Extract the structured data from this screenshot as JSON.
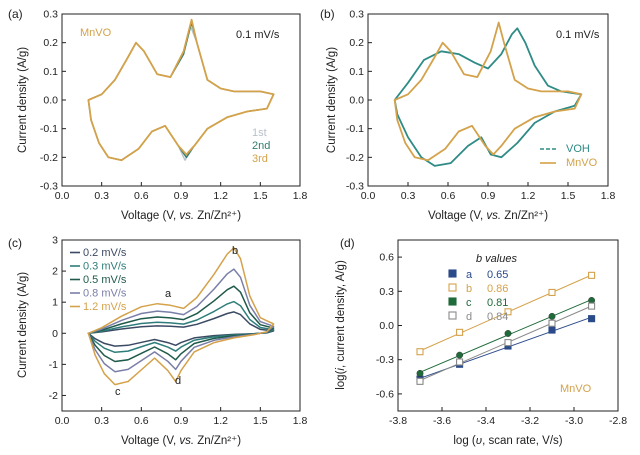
{
  "chart_data": [
    {
      "panel": "(a)",
      "type": "line",
      "xlabel": "Voltage (V, vs. Zn/Zn²⁺)",
      "ylabel": "Current density (A/g)",
      "xlim": [
        0.0,
        1.8
      ],
      "ylim": [
        -0.3,
        0.3
      ],
      "xticks": [
        "0.0",
        "0.3",
        "0.6",
        "0.9",
        "1.2",
        "1.5",
        "1.8"
      ],
      "yticks": [
        "-0.3",
        "-0.2",
        "-0.1",
        "0.0",
        "0.1",
        "0.2",
        "0.3"
      ],
      "material_label": "MnVO",
      "rate_label": "0.1 mV/s",
      "series": [
        {
          "name": "1st",
          "color": "#b8c0c8",
          "points": [
            [
              0.2,
              0.0
            ],
            [
              0.3,
              0.02
            ],
            [
              0.4,
              0.07
            ],
            [
              0.5,
              0.15
            ],
            [
              0.56,
              0.2
            ],
            [
              0.62,
              0.17
            ],
            [
              0.72,
              0.09
            ],
            [
              0.82,
              0.08
            ],
            [
              0.92,
              0.16
            ],
            [
              0.97,
              0.26
            ],
            [
              1.02,
              0.2
            ],
            [
              1.1,
              0.07
            ],
            [
              1.2,
              0.04
            ],
            [
              1.3,
              0.03
            ],
            [
              1.4,
              0.03
            ],
            [
              1.5,
              0.03
            ],
            [
              1.6,
              0.02
            ],
            [
              1.55,
              -0.03
            ],
            [
              1.4,
              -0.04
            ],
            [
              1.25,
              -0.06
            ],
            [
              1.1,
              -0.1
            ],
            [
              1.0,
              -0.16
            ],
            [
              0.93,
              -0.21
            ],
            [
              0.88,
              -0.16
            ],
            [
              0.78,
              -0.09
            ],
            [
              0.68,
              -0.11
            ],
            [
              0.58,
              -0.17
            ],
            [
              0.45,
              -0.21
            ],
            [
              0.35,
              -0.2
            ],
            [
              0.28,
              -0.15
            ],
            [
              0.22,
              -0.07
            ],
            [
              0.2,
              0.0
            ]
          ]
        },
        {
          "name": "2nd",
          "color": "#2e7d6e",
          "points": [
            [
              0.2,
              0.0
            ],
            [
              0.3,
              0.02
            ],
            [
              0.4,
              0.07
            ],
            [
              0.5,
              0.15
            ],
            [
              0.56,
              0.2
            ],
            [
              0.62,
              0.17
            ],
            [
              0.72,
              0.09
            ],
            [
              0.82,
              0.08
            ],
            [
              0.92,
              0.16
            ],
            [
              0.98,
              0.27
            ],
            [
              1.02,
              0.2
            ],
            [
              1.1,
              0.07
            ],
            [
              1.2,
              0.04
            ],
            [
              1.3,
              0.03
            ],
            [
              1.4,
              0.03
            ],
            [
              1.5,
              0.03
            ],
            [
              1.6,
              0.02
            ],
            [
              1.55,
              -0.03
            ],
            [
              1.4,
              -0.04
            ],
            [
              1.25,
              -0.06
            ],
            [
              1.1,
              -0.1
            ],
            [
              1.0,
              -0.16
            ],
            [
              0.94,
              -0.2
            ],
            [
              0.88,
              -0.16
            ],
            [
              0.78,
              -0.09
            ],
            [
              0.68,
              -0.11
            ],
            [
              0.58,
              -0.17
            ],
            [
              0.45,
              -0.21
            ],
            [
              0.35,
              -0.2
            ],
            [
              0.28,
              -0.15
            ],
            [
              0.22,
              -0.07
            ],
            [
              0.2,
              0.0
            ]
          ]
        },
        {
          "name": "3rd",
          "color": "#d4a24a",
          "points": [
            [
              0.2,
              0.0
            ],
            [
              0.3,
              0.02
            ],
            [
              0.4,
              0.07
            ],
            [
              0.5,
              0.15
            ],
            [
              0.56,
              0.2
            ],
            [
              0.62,
              0.17
            ],
            [
              0.72,
              0.09
            ],
            [
              0.82,
              0.08
            ],
            [
              0.92,
              0.17
            ],
            [
              0.98,
              0.28
            ],
            [
              1.02,
              0.2
            ],
            [
              1.1,
              0.07
            ],
            [
              1.2,
              0.04
            ],
            [
              1.3,
              0.03
            ],
            [
              1.4,
              0.03
            ],
            [
              1.5,
              0.03
            ],
            [
              1.6,
              0.02
            ],
            [
              1.55,
              -0.03
            ],
            [
              1.4,
              -0.04
            ],
            [
              1.25,
              -0.06
            ],
            [
              1.1,
              -0.1
            ],
            [
              1.0,
              -0.16
            ],
            [
              0.94,
              -0.19
            ],
            [
              0.88,
              -0.16
            ],
            [
              0.78,
              -0.09
            ],
            [
              0.68,
              -0.11
            ],
            [
              0.58,
              -0.17
            ],
            [
              0.45,
              -0.21
            ],
            [
              0.35,
              -0.2
            ],
            [
              0.28,
              -0.15
            ],
            [
              0.22,
              -0.07
            ],
            [
              0.2,
              0.0
            ]
          ]
        }
      ]
    },
    {
      "panel": "(b)",
      "type": "line",
      "xlabel": "Voltage (V, vs. Zn/Zn²⁺)",
      "ylabel": "Current density (A/g)",
      "xlim": [
        0.0,
        1.8
      ],
      "ylim": [
        -0.3,
        0.3
      ],
      "xticks": [
        "0.0",
        "0.3",
        "0.6",
        "0.9",
        "1.2",
        "1.5",
        "1.8"
      ],
      "yticks": [
        "-0.3",
        "-0.2",
        "-0.1",
        "0.0",
        "0.1",
        "0.2",
        "0.3"
      ],
      "rate_label": "0.1 mV/s",
      "series": [
        {
          "name": "VOH",
          "color": "#2e8b85",
          "points": [
            [
              0.2,
              0.0
            ],
            [
              0.3,
              0.06
            ],
            [
              0.42,
              0.14
            ],
            [
              0.55,
              0.17
            ],
            [
              0.68,
              0.16
            ],
            [
              0.8,
              0.13
            ],
            [
              0.9,
              0.11
            ],
            [
              1.0,
              0.16
            ],
            [
              1.08,
              0.23
            ],
            [
              1.12,
              0.25
            ],
            [
              1.18,
              0.2
            ],
            [
              1.25,
              0.12
            ],
            [
              1.35,
              0.05
            ],
            [
              1.45,
              0.03
            ],
            [
              1.6,
              0.02
            ],
            [
              1.55,
              -0.02
            ],
            [
              1.4,
              -0.04
            ],
            [
              1.25,
              -0.08
            ],
            [
              1.12,
              -0.15
            ],
            [
              1.0,
              -0.2
            ],
            [
              0.92,
              -0.19
            ],
            [
              0.85,
              -0.13
            ],
            [
              0.75,
              -0.16
            ],
            [
              0.62,
              -0.22
            ],
            [
              0.5,
              -0.23
            ],
            [
              0.4,
              -0.2
            ],
            [
              0.3,
              -0.13
            ],
            [
              0.22,
              -0.05
            ],
            [
              0.2,
              0.0
            ]
          ]
        },
        {
          "name": "MnVO",
          "color": "#d4a24a",
          "points": [
            [
              0.2,
              0.0
            ],
            [
              0.3,
              0.02
            ],
            [
              0.4,
              0.07
            ],
            [
              0.5,
              0.15
            ],
            [
              0.56,
              0.2
            ],
            [
              0.62,
              0.17
            ],
            [
              0.72,
              0.09
            ],
            [
              0.82,
              0.08
            ],
            [
              0.92,
              0.17
            ],
            [
              0.98,
              0.27
            ],
            [
              1.02,
              0.2
            ],
            [
              1.1,
              0.07
            ],
            [
              1.2,
              0.04
            ],
            [
              1.3,
              0.03
            ],
            [
              1.4,
              0.03
            ],
            [
              1.5,
              0.03
            ],
            [
              1.6,
              0.02
            ],
            [
              1.55,
              -0.03
            ],
            [
              1.4,
              -0.04
            ],
            [
              1.25,
              -0.06
            ],
            [
              1.1,
              -0.1
            ],
            [
              1.0,
              -0.16
            ],
            [
              0.94,
              -0.19
            ],
            [
              0.88,
              -0.16
            ],
            [
              0.78,
              -0.09
            ],
            [
              0.68,
              -0.11
            ],
            [
              0.58,
              -0.17
            ],
            [
              0.45,
              -0.21
            ],
            [
              0.35,
              -0.2
            ],
            [
              0.28,
              -0.15
            ],
            [
              0.22,
              -0.07
            ],
            [
              0.2,
              0.0
            ]
          ]
        }
      ]
    },
    {
      "panel": "(c)",
      "type": "line",
      "xlabel": "Voltage (V, vs. Zn/Zn²⁺)",
      "ylabel": "Current density (A/g)",
      "xlim": [
        0.0,
        1.8
      ],
      "ylim": [
        -2.5,
        3.0
      ],
      "xticks": [
        "0.0",
        "0.3",
        "0.6",
        "0.9",
        "1.2",
        "1.5",
        "1.8"
      ],
      "yticks": [
        "-2",
        "-1",
        "0",
        "1",
        "2",
        "3"
      ],
      "peak_labels": [
        "a",
        "b",
        "c",
        "d"
      ],
      "series": [
        {
          "name": "0.2 mV/s",
          "color": "#3b4a63",
          "scale": 0.25
        },
        {
          "name": "0.3 mV/s",
          "color": "#2e7d7a",
          "scale": 0.37
        },
        {
          "name": "0.5 mV/s",
          "color": "#1f5a4a",
          "scale": 0.55
        },
        {
          "name": "0.8 mV/s",
          "color": "#7a7fa8",
          "scale": 0.75
        },
        {
          "name": "1.2 mV/s",
          "color": "#d4a24a",
          "scale": 1.0
        }
      ],
      "base_curve": [
        [
          0.2,
          0.0
        ],
        [
          0.3,
          0.18
        ],
        [
          0.45,
          0.55
        ],
        [
          0.6,
          0.85
        ],
        [
          0.72,
          0.95
        ],
        [
          0.82,
          0.9
        ],
        [
          0.92,
          0.8
        ],
        [
          1.02,
          1.15
        ],
        [
          1.15,
          1.9
        ],
        [
          1.25,
          2.55
        ],
        [
          1.3,
          2.75
        ],
        [
          1.35,
          2.4
        ],
        [
          1.42,
          1.2
        ],
        [
          1.5,
          0.5
        ],
        [
          1.6,
          0.3
        ],
        [
          1.55,
          0.05
        ],
        [
          1.45,
          -0.05
        ],
        [
          1.3,
          -0.15
        ],
        [
          1.15,
          -0.3
        ],
        [
          1.0,
          -0.6
        ],
        [
          0.9,
          -1.2
        ],
        [
          0.86,
          -1.55
        ],
        [
          0.8,
          -1.2
        ],
        [
          0.7,
          -0.8
        ],
        [
          0.62,
          -1.1
        ],
        [
          0.5,
          -1.55
        ],
        [
          0.4,
          -1.65
        ],
        [
          0.32,
          -1.3
        ],
        [
          0.25,
          -0.7
        ],
        [
          0.2,
          0.0
        ]
      ]
    },
    {
      "panel": "(d)",
      "type": "scatter",
      "xlabel": "log (υ, scan rate, V/s)",
      "ylabel": "log(i, current density, A/g)",
      "xlim": [
        -3.8,
        -2.8
      ],
      "ylim": [
        -0.75,
        0.75
      ],
      "xticks": [
        "-3.8",
        "-3.6",
        "-3.4",
        "-3.2",
        "-3.0",
        "-2.8"
      ],
      "yticks": [
        "-0.6",
        "-0.3",
        "0.0",
        "0.3",
        "0.6"
      ],
      "legend_title": "b values",
      "material_label": "MnVO",
      "series": [
        {
          "name": "a",
          "b_value": "0.65",
          "color": "#2b4a8a",
          "x": [
            -3.7,
            -3.52,
            -3.3,
            -3.1,
            -2.92
          ],
          "y": [
            -0.47,
            -0.34,
            -0.18,
            -0.04,
            0.06
          ]
        },
        {
          "name": "b",
          "b_value": "0.86",
          "color": "#d4a24a",
          "x": [
            -3.7,
            -3.52,
            -3.3,
            -3.1,
            -2.92
          ],
          "y": [
            -0.23,
            -0.06,
            0.12,
            0.29,
            0.44
          ]
        },
        {
          "name": "c",
          "b_value": "0.81",
          "color": "#1f6b3a",
          "x": [
            -3.7,
            -3.52,
            -3.3,
            -3.1,
            -2.92
          ],
          "y": [
            -0.42,
            -0.26,
            -0.07,
            0.08,
            0.22
          ]
        },
        {
          "name": "d",
          "b_value": "0.84",
          "color": "#8a8a8a",
          "x": [
            -3.7,
            -3.52,
            -3.3,
            -3.1,
            -2.92
          ],
          "y": [
            -0.49,
            -0.32,
            -0.15,
            0.02,
            0.17
          ]
        }
      ]
    }
  ]
}
